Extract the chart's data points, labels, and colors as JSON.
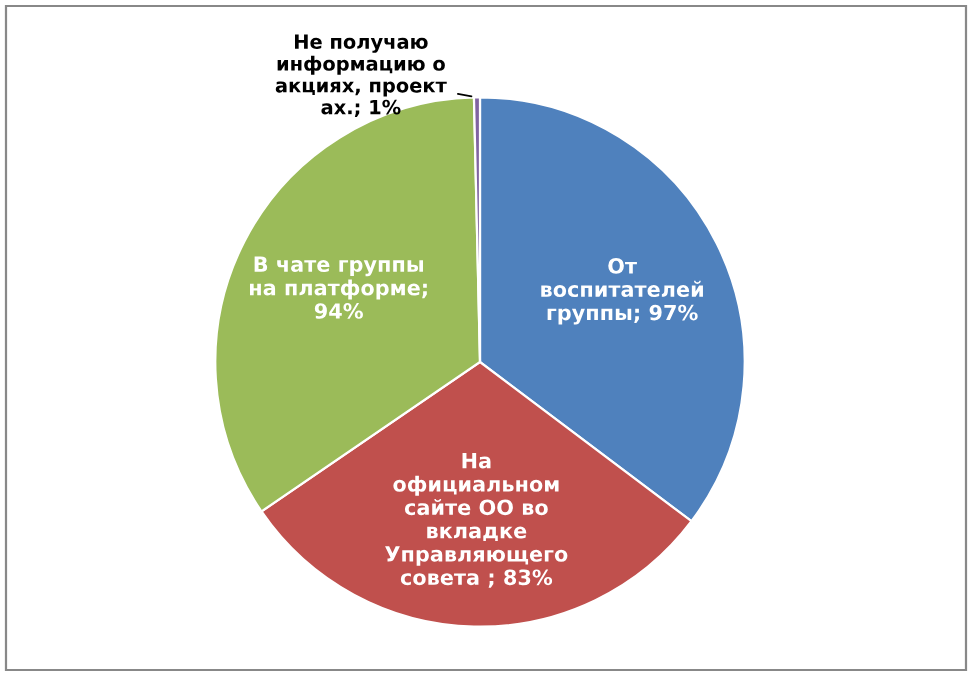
{
  "chart_data": {
    "type": "pie",
    "categories": [
      "От\nвоспитателей\nгруппы; 97%",
      "На\nофициальном\nсайте ОО во\nвкладке\nУправляющего\nсовета ; 83%",
      "В чате группы\nна платформе;\n94%",
      "Не получаю\nинформацию о\nакциях, проект\nах.; 1%"
    ],
    "values": [
      97,
      83,
      94,
      1
    ],
    "colors": [
      "#4f81bd",
      "#c0504d",
      "#9bbb59",
      "#8064a2"
    ]
  }
}
